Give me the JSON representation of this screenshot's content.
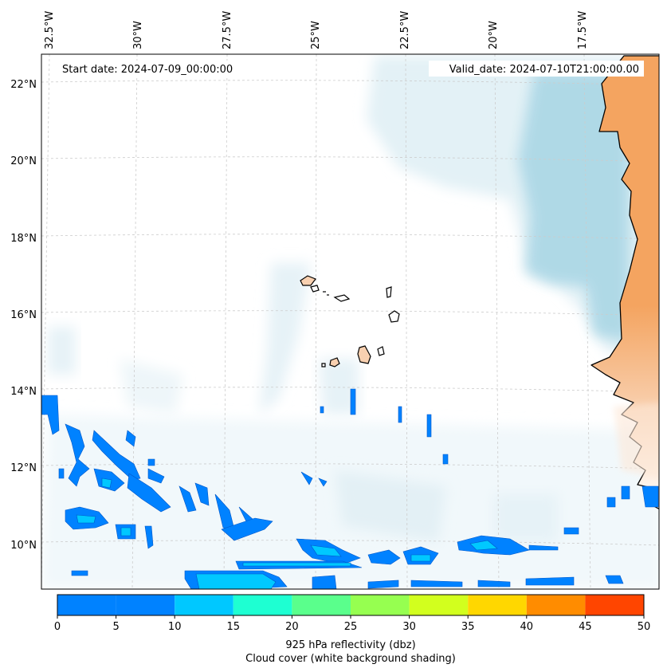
{
  "header": {
    "start_date": "Start date: 2024-07-09_00:00:00",
    "valid_date": "Valid_date: 2024-07-10T21:00:00.00"
  },
  "longitude_labels": [
    "32.5°W",
    "30°W",
    "27.5°W",
    "25°W",
    "22.5°W",
    "20°W",
    "17.5°W"
  ],
  "latitude_labels": [
    "22°N",
    "20°N",
    "18°N",
    "16°N",
    "14°N",
    "12°N",
    "10°N"
  ],
  "colorbar": {
    "title": "925 hPa reflectivity (dbz)",
    "subtitle": "Cloud cover (white background shading)",
    "ticks": [
      "0",
      "5",
      "10",
      "15",
      "20",
      "25",
      "30",
      "35",
      "40",
      "45",
      "50"
    ],
    "bins": [
      {
        "from": 5,
        "to": 10,
        "color": "#0082ff"
      },
      {
        "from": 10,
        "to": 15,
        "color": "#00c8ff"
      },
      {
        "from": 15,
        "to": 20,
        "color": "#1effd2"
      },
      {
        "from": 20,
        "to": 25,
        "color": "#5aff8c"
      },
      {
        "from": 25,
        "to": 30,
        "color": "#96ff50"
      },
      {
        "from": 30,
        "to": 35,
        "color": "#d2ff1e"
      },
      {
        "from": 35,
        "to": 40,
        "color": "#ffd700"
      },
      {
        "from": 40,
        "to": 45,
        "color": "#ff8c00"
      },
      {
        "from": 45,
        "to": 50,
        "color": "#ff4500"
      }
    ]
  },
  "colors": {
    "land": "#f4a460",
    "island": "#f8d0b0",
    "cloud": "#add8e6",
    "coast": "#000000",
    "grid": "#cccccc"
  }
}
